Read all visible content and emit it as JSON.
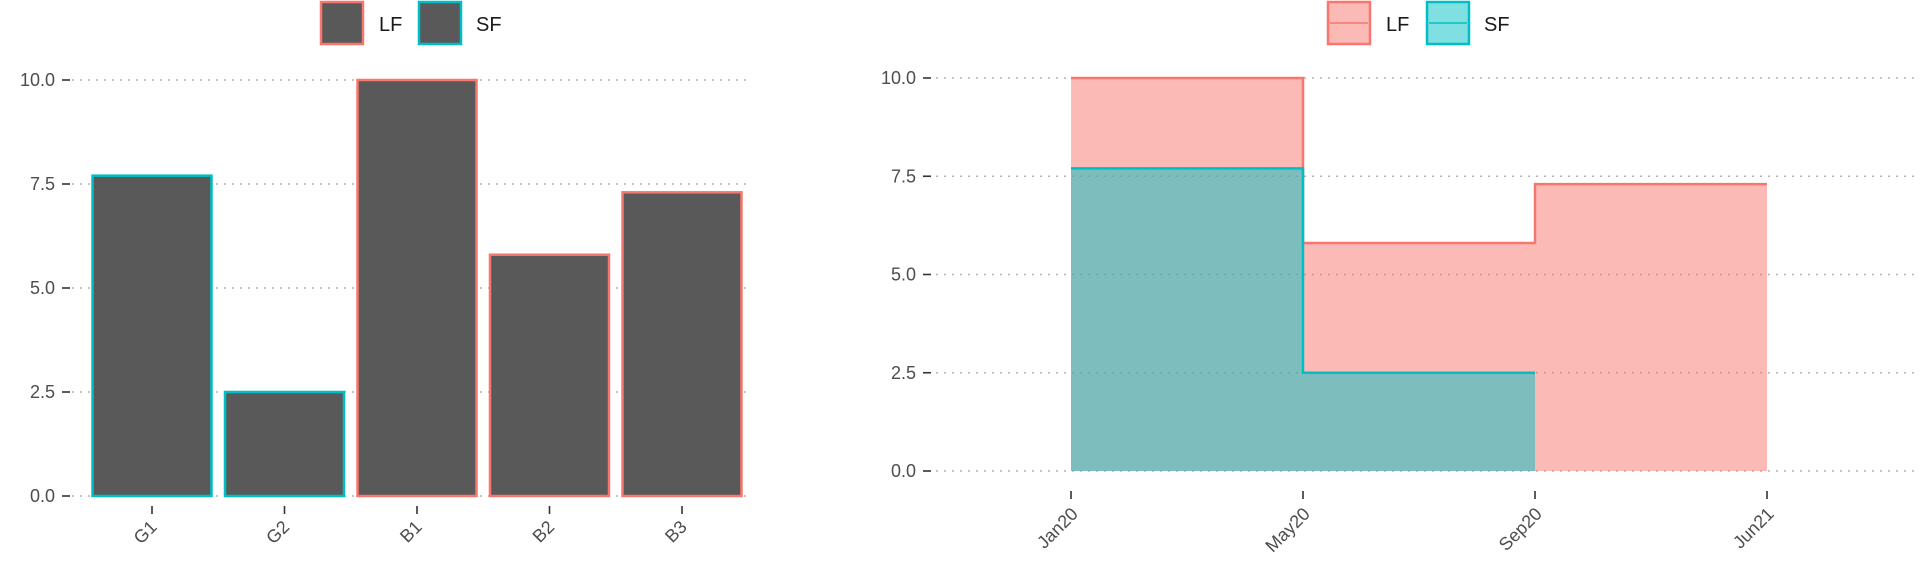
{
  "colors": {
    "lf": "#F8766D",
    "sf": "#00BFC4",
    "bar_fill": "#595959",
    "lf_area": "#F8766D",
    "sf_area": "#00BFC4"
  },
  "legend": {
    "items": [
      {
        "key": "lf",
        "label": "LF"
      },
      {
        "key": "sf",
        "label": "SF"
      }
    ]
  },
  "chart_data": [
    {
      "type": "bar",
      "categories": [
        "G1",
        "G2",
        "B1",
        "B2",
        "B3"
      ],
      "values": [
        7.7,
        2.5,
        10.0,
        5.8,
        7.3
      ],
      "groups": [
        "SF",
        "SF",
        "LF",
        "LF",
        "LF"
      ],
      "yticks": [
        "0.0",
        "2.5",
        "5.0",
        "7.5",
        "10.0"
      ],
      "ylim": [
        0,
        10
      ],
      "grid": "horizontal dotted",
      "legend_position": "top"
    },
    {
      "type": "area",
      "step": true,
      "x_ticks": [
        "Jan20",
        "May20",
        "Sep20",
        "Jun21"
      ],
      "yticks": [
        "0.0",
        "2.5",
        "5.0",
        "7.5",
        "10.0"
      ],
      "ylim": [
        0,
        10
      ],
      "series": [
        {
          "name": "LF",
          "values": [
            10.0,
            5.8,
            7.3
          ]
        },
        {
          "name": "SF",
          "values": [
            7.7,
            2.5
          ]
        }
      ],
      "grid": "horizontal dotted",
      "legend_position": "top"
    }
  ]
}
